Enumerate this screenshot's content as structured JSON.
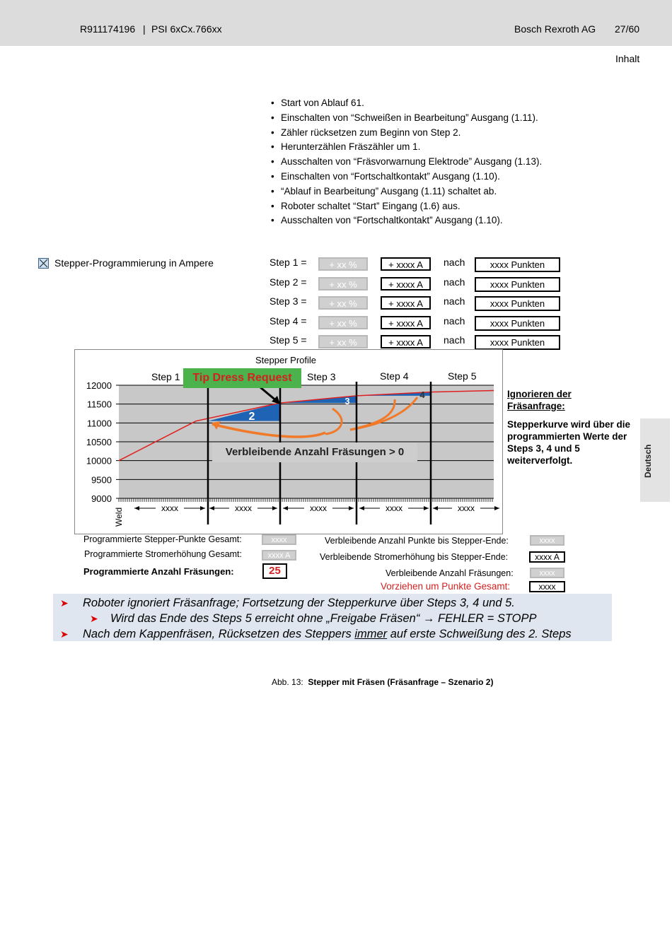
{
  "header": {
    "doc_id": "R911174196",
    "sep": "|",
    "product": "PSI 6xCx.766xx",
    "company": "Bosch Rexroth AG",
    "page": "27",
    "total": "/60",
    "section": "Inhalt"
  },
  "bullets": [
    "Start von Ablauf 61.",
    "Einschalten von “Schweißen in Bearbeitung” Ausgang (1.11).",
    "Zähler rücksetzen zum Beginn von Step 2.",
    "Herunterzählen Fräszähler um 1.",
    "Ausschalten von “Fräsvorwarnung Elektrode” Ausgang (1.13).",
    "Einschalten von “Fortschaltkontakt” Ausgang (1.10).",
    "“Ablauf in Bearbeitung” Ausgang (1.11) schaltet ab.",
    "Roboter schaltet “Start” Eingang (1.6) aus.",
    "Ausschalten von “Fortschaltkontakt” Ausgang (1.10)."
  ],
  "stepper": {
    "checkbox_label": "Stepper-Programmierung in Ampere",
    "checked": true,
    "rows": [
      {
        "label": "Step 1 =",
        "pct": "+ xx %",
        "amp": "+ xxxx A",
        "nach": "nach",
        "points": "xxxx Punkten"
      },
      {
        "label": "Step 2 =",
        "pct": "+ xx %",
        "amp": "+ xxxx A",
        "nach": "nach",
        "points": "xxxx Punkten"
      },
      {
        "label": "Step 3 =",
        "pct": "+ xx %",
        "amp": "+ xxxx A",
        "nach": "nach",
        "points": "xxxx Punkten"
      },
      {
        "label": "Step 4 =",
        "pct": "+ xx %",
        "amp": "+ xxxx A",
        "nach": "nach",
        "points": "xxxx Punkten"
      },
      {
        "label": "Step 5 =",
        "pct": "+ xx %",
        "amp": "+ xxxx A",
        "nach": "nach",
        "points": "xxxx Punkten"
      }
    ]
  },
  "chart_data": {
    "type": "line",
    "title": "Stepper Profile",
    "xlabel": "Weld",
    "ylim": [
      9000,
      12000
    ],
    "yticks": [
      "12000",
      "11500",
      "11000",
      "10500",
      "10000",
      "9500",
      "9000"
    ],
    "step_labels": [
      "Step 1",
      "Step 3",
      "Step 4",
      "Step 5"
    ],
    "segment_labels": [
      "xxxx",
      "xxxx",
      "xxxx",
      "xxxx",
      "xxxx"
    ],
    "callout": "Tip Dress Request",
    "overlay": "Verbleibende Anzahl Fräsungen > 0",
    "markers": [
      "2",
      "3",
      "4"
    ],
    "series": [
      {
        "values": [
          10000,
          11050,
          11530,
          11720,
          11820,
          11860
        ]
      }
    ],
    "grid": true,
    "line_color": "#e02020",
    "fill_color": "#1f63b5",
    "arrow_color": "#f07a2a"
  },
  "side_note": {
    "title_line1": "Ignorieren der",
    "title_line2": "Fräsanfrage:",
    "body": "Stepperkurve wird über die programmierten Werte der Steps 3, 4 und 5 weiterverfolgt."
  },
  "summary": {
    "prog_points_label": "Programmierte Stepper-Punkte Gesamt:",
    "prog_points": "xxxx",
    "prog_current_label": "Programmierte Stromerhöhung Gesamt:",
    "prog_current": "xxxx A",
    "prog_dress_label": "Programmierte Anzahl Fräsungen:",
    "prog_dress": "25",
    "rem_points_label": "Verbleibende Anzahl Punkte bis Stepper-Ende:",
    "rem_points": "xxxx",
    "rem_current_label": "Verbleibende Stromerhöhung bis Stepper-Ende:",
    "rem_current": "xxxx A",
    "rem_dress_label": "Verbleibende Anzahl Fräsungen:",
    "rem_dress": "xxxx",
    "advance_label": "Vorziehen um Punkte Gesamt:",
    "advance": "xxxx"
  },
  "notes": [
    "Roboter ignoriert Fräsanfrage; Fortsetzung der Stepperkurve über Steps 3, 4 und 5.",
    "Wird das Ende des Steps 5 erreicht ohne „Freigabe Fräsen“ → FEHLER = STOPP",
    "Nach dem Kappenfräsen, Rücksetzen des Steppers ",
    "immer",
    " auf erste Schweißung des 2. Steps"
  ],
  "caption": {
    "num": "Abb. 13:",
    "text": "Stepper mit Fräsen (Fräsanfrage – Szenario 2)"
  },
  "sidebar_tab": "Deutsch"
}
